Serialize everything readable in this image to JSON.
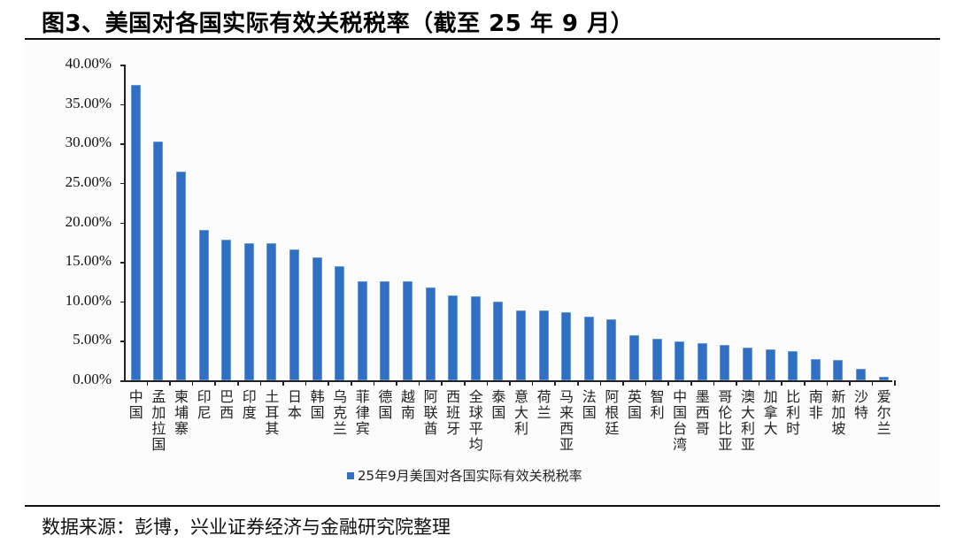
{
  "header": {
    "title": "图3、美国对各国实际有效关税税率（截至 25 年 9 月）"
  },
  "footer": {
    "source": "数据来源：彭博，兴业证券经济与金融研究院整理"
  },
  "legend": {
    "label": "25年9月美国对各国实际有效关税税率",
    "color": "#2f6fc4"
  },
  "chart_data": {
    "type": "bar",
    "title": "美国对各国实际有效关税税率（截至 25 年 9 月）",
    "xlabel": "",
    "ylabel": "",
    "ylim": [
      0,
      40
    ],
    "yticks": [
      "0.00%",
      "5.00%",
      "10.00%",
      "15.00%",
      "20.00%",
      "25.00%",
      "30.00%",
      "35.00%",
      "40.00%"
    ],
    "grid": false,
    "legend_position": "bottom",
    "bar_color": "#2f6fc4",
    "categories": [
      "中国",
      "孟加拉国",
      "柬埔寨",
      "印尼",
      "巴西",
      "印度",
      "土耳其",
      "日本",
      "韩国",
      "乌克兰",
      "菲律宾",
      "德国",
      "越南",
      "阿联酋",
      "西班牙",
      "全球平均",
      "泰国",
      "意大利",
      "荷兰",
      "马来西亚",
      "法国",
      "阿根廷",
      "英国",
      "智利",
      "中国台湾",
      "墨西哥",
      "哥伦比亚",
      "澳大利亚",
      "加拿大",
      "比利时",
      "南非",
      "新加坡",
      "沙特",
      "爱尔兰"
    ],
    "series": [
      {
        "name": "25年9月美国对各国实际有效关税税率",
        "values": [
          37.4,
          30.2,
          26.4,
          19.1,
          17.8,
          17.4,
          17.4,
          16.6,
          15.6,
          14.4,
          12.6,
          12.6,
          12.6,
          11.8,
          10.8,
          10.7,
          10.0,
          8.8,
          8.8,
          8.6,
          8.1,
          7.7,
          5.7,
          5.3,
          4.9,
          4.7,
          4.5,
          4.1,
          3.9,
          3.7,
          2.7,
          2.6,
          1.5,
          0.4
        ]
      }
    ]
  }
}
